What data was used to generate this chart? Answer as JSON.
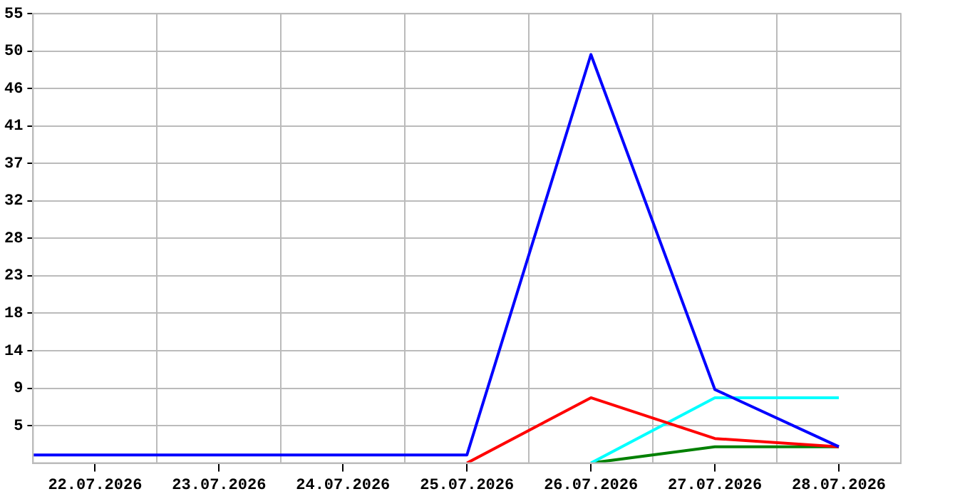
{
  "chart_data": {
    "type": "line",
    "x": [
      "2026-07-21T12:00",
      "2026-07-22",
      "2026-07-23",
      "2026-07-24",
      "2026-07-25",
      "2026-07-26",
      "2026-07-27",
      "2026-07-28"
    ],
    "series": [
      {
        "color": "#0000ff",
        "values": [
          1,
          1,
          1,
          1,
          1,
          50,
          9,
          2
        ]
      },
      {
        "color": "#ff0000",
        "x": [
          "2026-07-25",
          "2026-07-26",
          "2026-07-27",
          "2026-07-28"
        ],
        "values": [
          0,
          8,
          3,
          2
        ]
      },
      {
        "color": "#00ffff",
        "x": [
          "2026-07-26",
          "2026-07-27",
          "2026-07-28"
        ],
        "values": [
          0,
          8,
          8
        ]
      },
      {
        "color": "#008000",
        "x": [
          "2026-07-26",
          "2026-07-27",
          "2026-07-28"
        ],
        "values": [
          0,
          2,
          2
        ]
      }
    ],
    "xlim": [
      "2026-07-21T12:00",
      "2026-07-28T12:00"
    ],
    "xticks": [
      {
        "value": "2026-07-22",
        "label": "22.07.2026"
      },
      {
        "value": "2026-07-22T12:00",
        "label": null
      },
      {
        "value": "2026-07-23",
        "label": "23.07.2026"
      },
      {
        "value": "2026-07-23T12:00",
        "label": null
      },
      {
        "value": "2026-07-24",
        "label": "24.07.2026"
      },
      {
        "value": "2026-07-24T12:00",
        "label": null
      },
      {
        "value": "2026-07-25",
        "label": "25.07.2026"
      },
      {
        "value": "2026-07-25T12:00",
        "label": null
      },
      {
        "value": "2026-07-26",
        "label": "26.07.2026"
      },
      {
        "value": "2026-07-26T12:00",
        "label": null
      },
      {
        "value": "2026-07-27",
        "label": "27.07.2026"
      },
      {
        "value": "2026-07-27T12:00",
        "label": null
      },
      {
        "value": "2026-07-28",
        "label": "28.07.2026"
      }
    ],
    "ylim": [
      0,
      55
    ],
    "yticks": [
      {
        "value": 4.583,
        "label": "5"
      },
      {
        "value": 9.167,
        "label": "9"
      },
      {
        "value": 13.75,
        "label": "14"
      },
      {
        "value": 18.333,
        "label": "18"
      },
      {
        "value": 22.917,
        "label": "23"
      },
      {
        "value": 27.5,
        "label": "28"
      },
      {
        "value": 32.083,
        "label": "32"
      },
      {
        "value": 36.667,
        "label": "37"
      },
      {
        "value": 41.25,
        "label": "41"
      },
      {
        "value": 45.833,
        "label": "46"
      },
      {
        "value": 50.417,
        "label": "50"
      },
      {
        "value": 55,
        "label": "55"
      }
    ],
    "grid": true,
    "legend": false,
    "marker": "none",
    "line_style": "solid"
  }
}
